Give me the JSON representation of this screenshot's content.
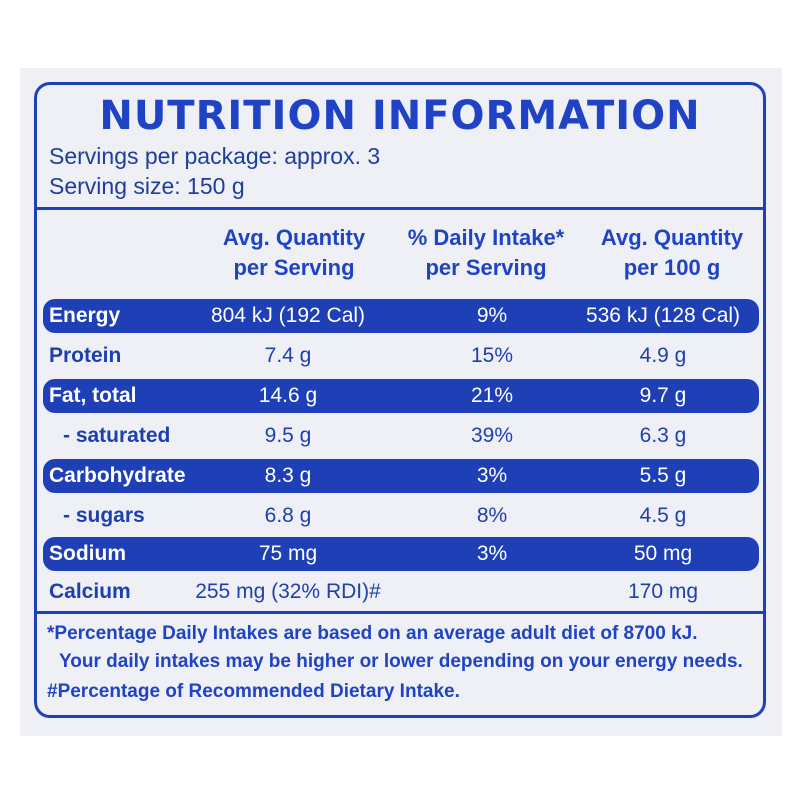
{
  "panel": {
    "title": "NUTRITION INFORMATION",
    "servings_per_package": "Servings per package: approx. 3",
    "serving_size": "Serving size: 150 g"
  },
  "table": {
    "headers": [
      {
        "line1": "Avg. Quantity",
        "line2": "per Serving"
      },
      {
        "line1": "% Daily Intake*",
        "line2": "per Serving"
      },
      {
        "line1": "Avg. Quantity",
        "line2": "per 100 g"
      }
    ],
    "rows": [
      {
        "name": "Energy",
        "per_serving": "804 kJ (192 Cal)",
        "daily_intake": "9%",
        "per_100g": "536 kJ (128 Cal)"
      },
      {
        "name": "Protein",
        "per_serving": "7.4 g",
        "daily_intake": "15%",
        "per_100g": "4.9 g"
      },
      {
        "name": "Fat, total",
        "per_serving": "14.6 g",
        "daily_intake": "21%",
        "per_100g": "9.7 g"
      },
      {
        "name": "- saturated",
        "per_serving": "9.5 g",
        "daily_intake": "39%",
        "per_100g": "6.3 g"
      },
      {
        "name": "Carbohydrate",
        "per_serving": "8.3 g",
        "daily_intake": "3%",
        "per_100g": "5.5 g"
      },
      {
        "name": "- sugars",
        "per_serving": "6.8 g",
        "daily_intake": "8%",
        "per_100g": "4.5 g"
      },
      {
        "name": "Sodium",
        "per_serving": "75 mg",
        "daily_intake": "3%",
        "per_100g": "50 mg"
      },
      {
        "name": "Calcium",
        "per_serving": "255 mg (32% RDI)#",
        "daily_intake": "",
        "per_100g": "170 mg"
      }
    ]
  },
  "footnotes": {
    "line1": "*Percentage Daily Intakes are based on an average adult diet of 8700 kJ.",
    "line2": "Your daily intakes may be higher or lower depending on your energy needs.",
    "line3": "#Percentage of Recommended Dietary Intake."
  },
  "colors": {
    "accent": "#1e3fb6",
    "text": "#1e3fae",
    "background": "#eef0f5"
  }
}
